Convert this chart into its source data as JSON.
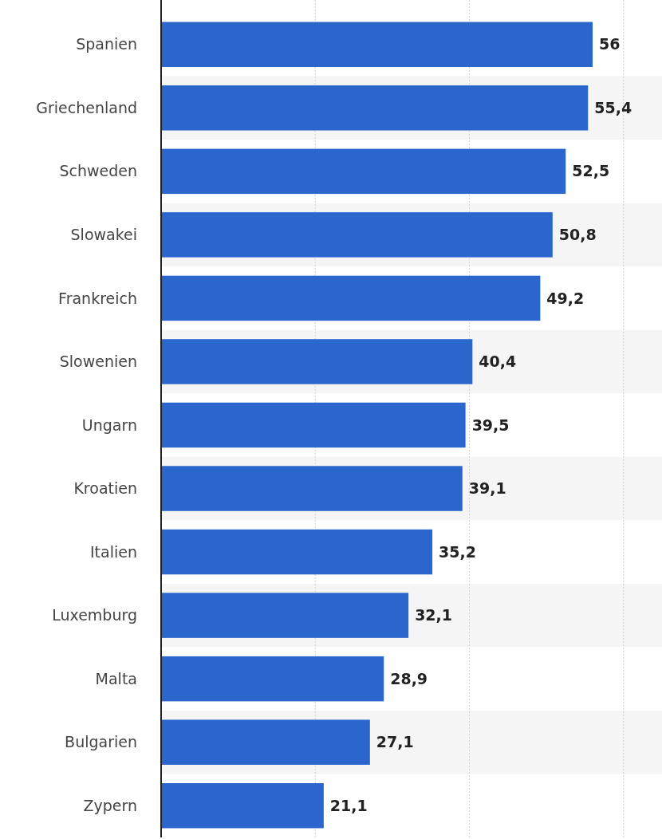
{
  "chart_data": {
    "type": "bar",
    "orientation": "horizontal",
    "categories": [
      "Spanien",
      "Griechenland",
      "Schweden",
      "Slowakei",
      "Frankreich",
      "Slowenien",
      "Ungarn",
      "Kroatien",
      "Italien",
      "Luxemburg",
      "Malta",
      "Bulgarien",
      "Zypern"
    ],
    "values": [
      56,
      55.4,
      52.5,
      50.8,
      49.2,
      40.4,
      39.5,
      39.1,
      35.2,
      32.1,
      28.9,
      27.1,
      21.1
    ],
    "value_labels": [
      "56",
      "55,4",
      "52,5",
      "50,8",
      "49,2",
      "40,4",
      "39,5",
      "39,1",
      "35,2",
      "32,1",
      "28,9",
      "27,1",
      "21,1"
    ],
    "color": "#2a66cc",
    "xlim": [
      0,
      65
    ],
    "xticks": [
      {
        "value": 20,
        "label": null
      },
      {
        "value": 40,
        "label": null
      },
      {
        "value": 60,
        "label": null
      }
    ],
    "grid": "x",
    "tick_labels": "y"
  }
}
